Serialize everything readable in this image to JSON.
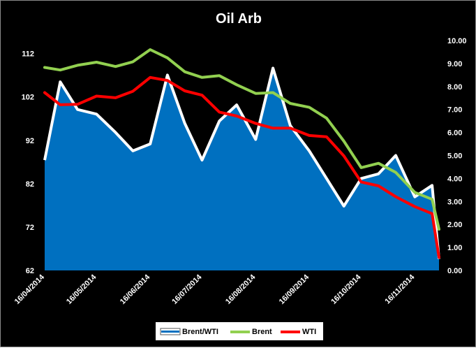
{
  "chart_data": {
    "type": "line",
    "title": "Oil Arb",
    "x": [
      "16/04/2014",
      "25/04/2014",
      "05/05/2014",
      "16/05/2014",
      "27/05/2014",
      "06/06/2014",
      "16/06/2014",
      "26/06/2014",
      "06/07/2014",
      "16/07/2014",
      "26/07/2014",
      "05/08/2014",
      "16/08/2014",
      "26/08/2014",
      "05/09/2014",
      "16/09/2014",
      "26/09/2014",
      "06/10/2014",
      "16/10/2014",
      "26/10/2014",
      "05/11/2014",
      "16/11/2014",
      "26/11/2014",
      "30/11/2014"
    ],
    "x_tick_labels": [
      "16/04/2014",
      "16/05/2014",
      "16/06/2014",
      "16/07/2014",
      "16/08/2014",
      "16/09/2014",
      "16/10/2014",
      "16/11/2014"
    ],
    "left_axis": {
      "ylim": [
        62,
        115
      ],
      "ticks": [
        "62",
        "72",
        "82",
        "92",
        "102",
        "112"
      ]
    },
    "right_axis": {
      "ylim": [
        0,
        10
      ],
      "ticks": [
        "0.00",
        "1.00",
        "2.00",
        "3.00",
        "4.00",
        "5.00",
        "6.00",
        "7.00",
        "8.00",
        "9.00",
        "10.00"
      ]
    },
    "series": [
      {
        "name": "Brent/WTI",
        "axis": "right",
        "kind": "area",
        "color": "#0070C0",
        "outline": "#ffffff",
        "values": [
          4.8,
          8.2,
          7.0,
          6.8,
          6.0,
          5.2,
          5.5,
          8.5,
          6.4,
          4.8,
          6.5,
          7.2,
          5.7,
          8.8,
          6.3,
          5.2,
          4.0,
          2.8,
          4.0,
          4.2,
          5.0,
          3.2,
          3.7,
          0.5
        ]
      },
      {
        "name": "Brent",
        "axis": "left",
        "kind": "line",
        "color": "#92D050",
        "values": [
          108.8,
          108.2,
          109.3,
          110.0,
          109.0,
          110.1,
          112.9,
          111.0,
          107.8,
          106.5,
          106.9,
          104.8,
          102.8,
          103.0,
          100.5,
          99.6,
          97.1,
          91.8,
          85.7,
          86.7,
          84.6,
          80.0,
          78.4,
          71.5
        ]
      },
      {
        "name": "WTI",
        "axis": "left",
        "kind": "line",
        "color": "#FF0000",
        "values": [
          103.0,
          100.2,
          100.3,
          102.2,
          101.8,
          103.3,
          106.5,
          105.8,
          103.4,
          102.4,
          98.5,
          97.6,
          95.9,
          94.8,
          94.8,
          93.1,
          92.8,
          88.4,
          82.4,
          81.5,
          79.0,
          76.7,
          75.1,
          65.0
        ]
      }
    ],
    "legend": {
      "position": "bottom",
      "entries": [
        "Brent/WTI",
        "Brent",
        "WTI"
      ]
    },
    "grid": false
  }
}
